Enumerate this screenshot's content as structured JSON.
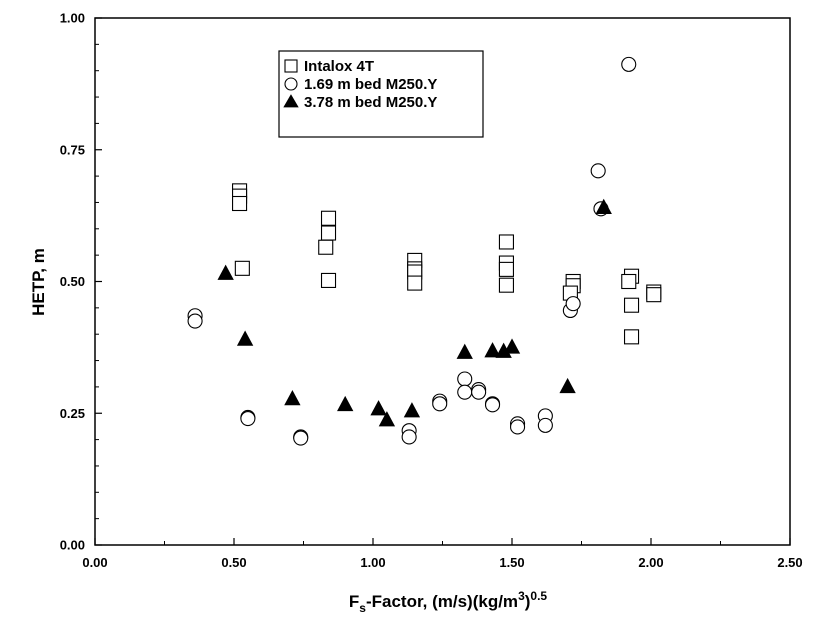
{
  "chart_data": {
    "type": "scatter",
    "title": "",
    "xlabel": {
      "main": "F",
      "sub": "s",
      "rest": "-Factor, (m/s)(kg/m",
      "sup1": "3",
      "close": ")",
      "sup2": "0.5"
    },
    "ylabel": "HETP,  m",
    "xlim": [
      0,
      2.5
    ],
    "ylim": [
      0,
      1
    ],
    "x_ticks": [
      "0.00",
      "0.50",
      "1.00",
      "1.50",
      "2.00",
      "2.50"
    ],
    "y_ticks": [
      "0.00",
      "0.25",
      "0.50",
      "0.75",
      "1.00"
    ],
    "grid": false,
    "legend_position": "top-center",
    "series": [
      {
        "name": "Intalox 4T",
        "marker": "square-open",
        "points": [
          [
            0.52,
            0.672
          ],
          [
            0.52,
            0.662
          ],
          [
            0.52,
            0.648
          ],
          [
            0.53,
            0.525
          ],
          [
            0.84,
            0.62
          ],
          [
            0.84,
            0.592
          ],
          [
            0.83,
            0.565
          ],
          [
            0.84,
            0.502
          ],
          [
            1.15,
            0.54
          ],
          [
            1.15,
            0.524
          ],
          [
            1.15,
            0.518
          ],
          [
            1.15,
            0.497
          ],
          [
            1.48,
            0.575
          ],
          [
            1.48,
            0.535
          ],
          [
            1.48,
            0.523
          ],
          [
            1.48,
            0.493
          ],
          [
            1.72,
            0.5
          ],
          [
            1.72,
            0.492
          ],
          [
            1.71,
            0.478
          ],
          [
            1.93,
            0.51
          ],
          [
            1.92,
            0.5
          ],
          [
            1.93,
            0.455
          ],
          [
            1.93,
            0.395
          ],
          [
            2.01,
            0.48
          ],
          [
            2.01,
            0.475
          ]
        ]
      },
      {
        "name": "1.69 m bed M250.Y",
        "marker": "circle-open",
        "points": [
          [
            0.36,
            0.435
          ],
          [
            0.36,
            0.425
          ],
          [
            0.55,
            0.242
          ],
          [
            0.55,
            0.24
          ],
          [
            0.74,
            0.205
          ],
          [
            0.74,
            0.203
          ],
          [
            1.13,
            0.217
          ],
          [
            1.13,
            0.205
          ],
          [
            1.24,
            0.273
          ],
          [
            1.24,
            0.268
          ],
          [
            1.33,
            0.315
          ],
          [
            1.33,
            0.29
          ],
          [
            1.38,
            0.295
          ],
          [
            1.38,
            0.29
          ],
          [
            1.43,
            0.268
          ],
          [
            1.43,
            0.266
          ],
          [
            1.52,
            0.23
          ],
          [
            1.52,
            0.224
          ],
          [
            1.62,
            0.245
          ],
          [
            1.62,
            0.227
          ],
          [
            1.71,
            0.445
          ],
          [
            1.72,
            0.458
          ],
          [
            1.81,
            0.71
          ],
          [
            1.82,
            0.638
          ],
          [
            1.92,
            0.912
          ]
        ]
      },
      {
        "name": "3.78 m bed M250.Y",
        "marker": "triangle-filled",
        "points": [
          [
            0.47,
            0.515
          ],
          [
            0.54,
            0.39
          ],
          [
            0.71,
            0.277
          ],
          [
            0.9,
            0.266
          ],
          [
            1.02,
            0.258
          ],
          [
            1.05,
            0.237
          ],
          [
            1.14,
            0.254
          ],
          [
            1.33,
            0.365
          ],
          [
            1.43,
            0.368
          ],
          [
            1.47,
            0.367
          ],
          [
            1.5,
            0.375
          ],
          [
            1.7,
            0.3
          ],
          [
            1.83,
            0.64
          ]
        ]
      }
    ]
  }
}
